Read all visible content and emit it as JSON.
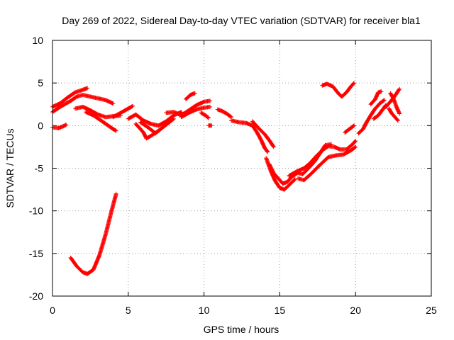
{
  "chart_data": {
    "type": "scatter",
    "title": "Day 269 of 2022, Sidereal Day-to-day VTEC variation (SDTVAR) for receiver bla1",
    "xlabel": "GPS time / hours",
    "ylabel": "SDTVAR / TECUs",
    "xlim": [
      0,
      25
    ],
    "ylim": [
      -20,
      10
    ],
    "xticks": [
      0,
      5,
      10,
      15,
      20,
      25
    ],
    "yticks": [
      -20,
      -15,
      -10,
      -5,
      0,
      5,
      10
    ],
    "grid": true,
    "marker": "+",
    "color": "#ff0000",
    "series": [
      {
        "name": "arc-01",
        "points": [
          [
            0,
            2.2
          ],
          [
            0.5,
            2.6
          ],
          [
            1.0,
            3.3
          ],
          [
            1.5,
            3.9
          ],
          [
            2.0,
            4.2
          ],
          [
            2.3,
            4.4
          ]
        ]
      },
      {
        "name": "arc-02",
        "points": [
          [
            0,
            1.6
          ],
          [
            0.6,
            2.3
          ],
          [
            1.2,
            2.9
          ],
          [
            1.6,
            3.4
          ],
          [
            2.0,
            3.6
          ],
          [
            2.5,
            3.4
          ],
          [
            3.0,
            3.2
          ],
          [
            3.5,
            3.0
          ],
          [
            4.0,
            2.6
          ]
        ]
      },
      {
        "name": "arc-03",
        "points": [
          [
            0,
            -0.2
          ],
          [
            0.4,
            -0.3
          ],
          [
            0.8,
            0.0
          ],
          [
            0.9,
            0.1
          ]
        ]
      },
      {
        "name": "arc-04",
        "points": [
          [
            1.5,
            2.0
          ],
          [
            2.0,
            2.2
          ],
          [
            2.5,
            1.8
          ],
          [
            3.0,
            1.3
          ],
          [
            3.5,
            1.0
          ],
          [
            4.0,
            1.1
          ],
          [
            4.5,
            1.2
          ]
        ]
      },
      {
        "name": "arc-05",
        "points": [
          [
            2.2,
            1.6
          ],
          [
            2.7,
            1.2
          ],
          [
            3.2,
            0.6
          ],
          [
            3.6,
            0.1
          ],
          [
            4.0,
            -0.4
          ],
          [
            4.2,
            -0.6
          ]
        ]
      },
      {
        "name": "arc-06",
        "points": [
          [
            1.2,
            -15.5
          ],
          [
            1.6,
            -16.5
          ],
          [
            2.0,
            -17.2
          ],
          [
            2.3,
            -17.4
          ],
          [
            2.7,
            -16.9
          ],
          [
            3.1,
            -15.2
          ],
          [
            3.5,
            -12.8
          ],
          [
            3.9,
            -10.0
          ],
          [
            4.2,
            -8.0
          ]
        ]
      },
      {
        "name": "arc-07",
        "points": [
          [
            4.0,
            1.0
          ],
          [
            4.5,
            1.5
          ],
          [
            5.0,
            2.0
          ],
          [
            5.3,
            2.3
          ]
        ]
      },
      {
        "name": "arc-08",
        "points": [
          [
            5.0,
            0.8
          ],
          [
            5.5,
            1.3
          ],
          [
            6.0,
            0.6
          ],
          [
            6.5,
            0.2
          ],
          [
            7.0,
            0.0
          ],
          [
            7.5,
            0.5
          ],
          [
            8.0,
            1.2
          ],
          [
            8.5,
            1.6
          ]
        ]
      },
      {
        "name": "arc-09",
        "points": [
          [
            5.5,
            0.2
          ],
          [
            6.0,
            -0.8
          ],
          [
            6.2,
            -1.5
          ],
          [
            6.5,
            -1.2
          ],
          [
            7.0,
            -0.6
          ],
          [
            7.5,
            0.1
          ],
          [
            8.0,
            0.8
          ]
        ]
      },
      {
        "name": "arc-10",
        "points": [
          [
            5.8,
            0.4
          ],
          [
            6.3,
            -0.2
          ],
          [
            6.8,
            -0.9
          ],
          [
            7.2,
            -0.3
          ],
          [
            7.6,
            0.4
          ]
        ]
      },
      {
        "name": "arc-11",
        "points": [
          [
            7.5,
            1.5
          ],
          [
            8.0,
            1.6
          ],
          [
            8.5,
            1.2
          ],
          [
            9.0,
            1.8
          ],
          [
            9.5,
            2.4
          ],
          [
            10.0,
            2.8
          ],
          [
            10.4,
            2.9
          ]
        ]
      },
      {
        "name": "arc-12",
        "points": [
          [
            8.5,
            1.0
          ],
          [
            9.0,
            1.5
          ],
          [
            9.5,
            1.9
          ],
          [
            10.0,
            2.1
          ],
          [
            10.4,
            2.2
          ]
        ]
      },
      {
        "name": "arc-13",
        "points": [
          [
            8.8,
            3.1
          ],
          [
            9.1,
            3.6
          ],
          [
            9.4,
            3.8
          ]
        ]
      },
      {
        "name": "arc-14",
        "points": [
          [
            9.8,
            1.5
          ],
          [
            10.1,
            1.2
          ],
          [
            10.3,
            0.9
          ]
        ]
      },
      {
        "name": "arc-15",
        "points": [
          [
            10.3,
            0.0
          ],
          [
            10.5,
            0.0
          ]
        ]
      },
      {
        "name": "arc-16",
        "points": [
          [
            10.9,
            1.9
          ],
          [
            11.2,
            1.7
          ],
          [
            11.5,
            1.4
          ],
          [
            11.8,
            1.0
          ]
        ]
      },
      {
        "name": "arc-17",
        "points": [
          [
            11.8,
            0.6
          ],
          [
            12.3,
            0.4
          ],
          [
            12.8,
            0.3
          ],
          [
            13.2,
            0.0
          ],
          [
            13.5,
            -0.8
          ],
          [
            13.8,
            -1.8
          ],
          [
            14.0,
            -2.6
          ],
          [
            14.2,
            -3.1
          ]
        ]
      },
      {
        "name": "arc-18",
        "points": [
          [
            13.2,
            0.5
          ],
          [
            13.6,
            -0.3
          ],
          [
            14.0,
            -1.0
          ],
          [
            14.3,
            -1.7
          ],
          [
            14.6,
            -2.5
          ]
        ]
      },
      {
        "name": "arc-19",
        "points": [
          [
            14.1,
            -3.8
          ],
          [
            14.4,
            -5.3
          ],
          [
            14.7,
            -6.5
          ],
          [
            15.0,
            -7.3
          ],
          [
            15.3,
            -7.5
          ],
          [
            15.6,
            -7.0
          ],
          [
            16.0,
            -6.3
          ]
        ]
      },
      {
        "name": "arc-20",
        "points": [
          [
            14.3,
            -4.5
          ],
          [
            14.6,
            -5.6
          ],
          [
            14.9,
            -6.2
          ],
          [
            15.2,
            -6.8
          ],
          [
            15.5,
            -6.6
          ],
          [
            15.8,
            -6.0
          ],
          [
            16.2,
            -5.5
          ]
        ]
      },
      {
        "name": "arc-21",
        "points": [
          [
            15.6,
            -5.9
          ],
          [
            16.1,
            -5.4
          ],
          [
            16.6,
            -5.0
          ],
          [
            17.0,
            -4.4
          ],
          [
            17.4,
            -3.6
          ],
          [
            17.8,
            -2.9
          ],
          [
            18.2,
            -2.4
          ],
          [
            18.6,
            -2.5
          ],
          [
            19.0,
            -2.8
          ],
          [
            19.4,
            -2.8
          ],
          [
            19.8,
            -2.2
          ],
          [
            20.0,
            -1.8
          ]
        ]
      },
      {
        "name": "arc-22",
        "points": [
          [
            16.2,
            -6.2
          ],
          [
            16.6,
            -6.4
          ],
          [
            17.1,
            -5.6
          ],
          [
            17.6,
            -4.7
          ],
          [
            18.2,
            -3.7
          ],
          [
            18.7,
            -3.5
          ],
          [
            19.2,
            -3.4
          ],
          [
            19.7,
            -2.9
          ],
          [
            20.0,
            -2.5
          ]
        ]
      },
      {
        "name": "arc-23",
        "points": [
          [
            16.1,
            -5.5
          ],
          [
            16.5,
            -5.7
          ],
          [
            16.9,
            -5.0
          ],
          [
            17.3,
            -4.2
          ],
          [
            17.6,
            -3.4
          ],
          [
            18.0,
            -2.3
          ],
          [
            18.4,
            -2.2
          ]
        ]
      },
      {
        "name": "arc-24",
        "points": [
          [
            17.8,
            4.7
          ],
          [
            18.1,
            4.9
          ],
          [
            18.5,
            4.6
          ],
          [
            18.9,
            3.7
          ],
          [
            19.1,
            3.4
          ],
          [
            19.4,
            3.9
          ],
          [
            19.7,
            4.6
          ],
          [
            19.9,
            5.0
          ]
        ]
      },
      {
        "name": "arc-25",
        "points": [
          [
            19.3,
            -0.8
          ],
          [
            19.6,
            -0.4
          ],
          [
            19.9,
            0.0
          ]
        ]
      },
      {
        "name": "arc-26",
        "points": [
          [
            20.2,
            -0.9
          ],
          [
            20.5,
            -0.4
          ],
          [
            20.7,
            0.3
          ],
          [
            21.0,
            1.2
          ],
          [
            21.3,
            2.0
          ],
          [
            21.6,
            2.6
          ],
          [
            21.9,
            3.0
          ]
        ]
      },
      {
        "name": "arc-27",
        "points": [
          [
            21.0,
            2.5
          ],
          [
            21.3,
            3.1
          ],
          [
            21.5,
            3.9
          ],
          [
            21.7,
            4.0
          ]
        ]
      },
      {
        "name": "arc-28",
        "points": [
          [
            21.2,
            0.8
          ],
          [
            21.5,
            1.2
          ],
          [
            21.8,
            1.9
          ],
          [
            22.0,
            2.4
          ]
        ]
      },
      {
        "name": "arc-29",
        "points": [
          [
            22.0,
            2.2
          ],
          [
            22.3,
            2.8
          ],
          [
            22.6,
            3.5
          ],
          [
            22.9,
            4.3
          ]
        ]
      },
      {
        "name": "arc-30",
        "points": [
          [
            22.2,
            2.0
          ],
          [
            22.4,
            1.4
          ],
          [
            22.6,
            1.0
          ],
          [
            22.8,
            0.6
          ]
        ]
      },
      {
        "name": "arc-31",
        "points": [
          [
            22.3,
            3.8
          ],
          [
            22.5,
            3.2
          ],
          [
            22.7,
            2.2
          ],
          [
            22.9,
            1.4
          ]
        ]
      }
    ]
  }
}
